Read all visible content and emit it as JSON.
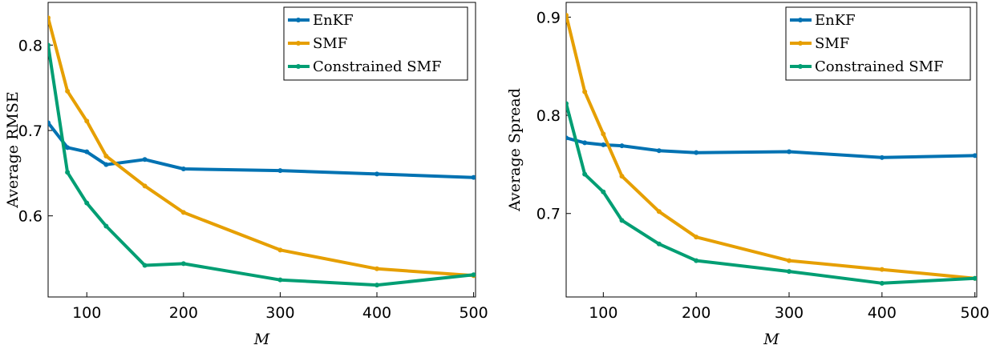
{
  "chart_data": [
    {
      "type": "line",
      "xlabel": "M",
      "ylabel": "Average RMSE",
      "xlim": [
        60,
        502
      ],
      "ylim": [
        0.505,
        0.85
      ],
      "xticks": [
        100,
        200,
        300,
        400,
        500
      ],
      "xtick_labels": [
        "100",
        "200",
        "300",
        "400",
        "500"
      ],
      "yticks": [
        0.6,
        0.7,
        0.8
      ],
      "ytick_labels": [
        "0.6",
        "0.7",
        "0.8"
      ],
      "grid": false,
      "legend": "top-right",
      "x": [
        60,
        80,
        100,
        120,
        160,
        200,
        300,
        400,
        500
      ],
      "series": [
        {
          "name": "EnKF",
          "color": "#0072b2",
          "values": [
            0.709,
            0.68,
            0.675,
            0.66,
            0.666,
            0.655,
            0.653,
            0.649,
            0.645
          ]
        },
        {
          "name": "SMF",
          "color": "#e69f00",
          "values": [
            0.832,
            0.746,
            0.711,
            0.67,
            0.635,
            0.604,
            0.56,
            0.538,
            0.53
          ]
        },
        {
          "name": "Constrained SMF",
          "color": "#009e73",
          "values": [
            0.8,
            0.651,
            0.615,
            0.588,
            0.542,
            0.544,
            0.525,
            0.519,
            0.531
          ]
        }
      ]
    },
    {
      "type": "line",
      "xlabel": "M",
      "ylabel": "Average Spread",
      "xlim": [
        60,
        502
      ],
      "ylim": [
        0.615,
        0.915
      ],
      "xticks": [
        100,
        200,
        300,
        400,
        500
      ],
      "xtick_labels": [
        "100",
        "200",
        "300",
        "400",
        "500"
      ],
      "yticks": [
        0.7,
        0.8,
        0.9
      ],
      "ytick_labels": [
        "0.7",
        "0.8",
        "0.9"
      ],
      "grid": false,
      "legend": "top-right",
      "x": [
        60,
        80,
        100,
        120,
        160,
        200,
        300,
        400,
        500
      ],
      "series": [
        {
          "name": "EnKF",
          "color": "#0072b2",
          "values": [
            0.777,
            0.772,
            0.77,
            0.769,
            0.764,
            0.762,
            0.763,
            0.757,
            0.759
          ]
        },
        {
          "name": "SMF",
          "color": "#e69f00",
          "values": [
            0.902,
            0.824,
            0.781,
            0.738,
            0.702,
            0.676,
            0.652,
            0.643,
            0.634
          ]
        },
        {
          "name": "Constrained SMF",
          "color": "#009e73",
          "values": [
            0.812,
            0.74,
            0.722,
            0.693,
            0.669,
            0.652,
            0.641,
            0.629,
            0.634
          ]
        }
      ]
    }
  ]
}
